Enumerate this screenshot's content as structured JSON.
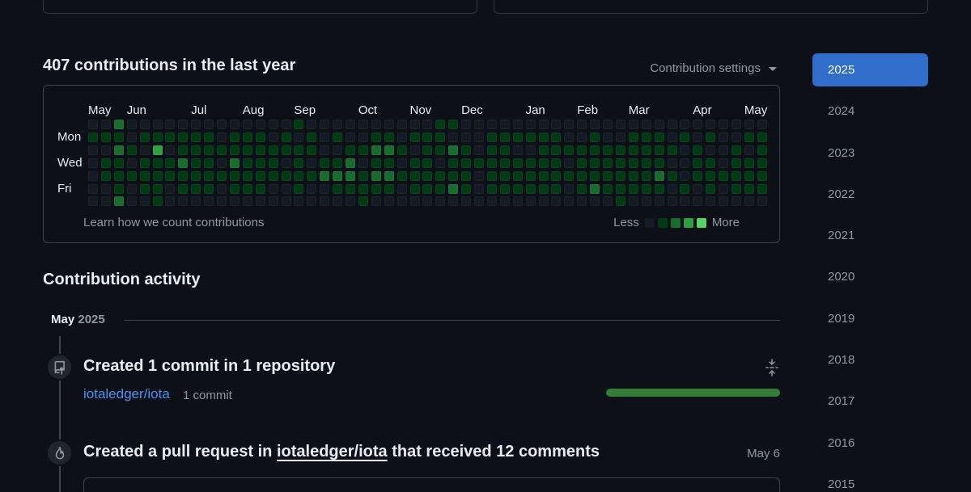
{
  "header": {
    "contributions_title": "407 contributions in the last year",
    "settings_label": "Contribution settings"
  },
  "calendar": {
    "months": [
      "May",
      "Jun",
      "Jul",
      "Aug",
      "Sep",
      "Oct",
      "Nov",
      "Dec",
      "Jan",
      "Feb",
      "Mar",
      "Apr",
      "May"
    ],
    "month_weeks": [
      0,
      3,
      8,
      12,
      16,
      21,
      25,
      29,
      34,
      38,
      42,
      47,
      51
    ],
    "days": [
      "Mon",
      "Wed",
      "Fri"
    ],
    "learn_link": "Learn how we count contributions",
    "legend_less": "Less",
    "legend_more": "More",
    "colors": [
      "#161b22",
      "#0e4429",
      "#006d32",
      "#26a641",
      "#39d353"
    ],
    "display_colors": [
      "#151b23",
      "#033a16",
      "#196c2e",
      "#2ea043",
      "#56d364"
    ],
    "weeks": 53,
    "levels": [
      [
        0,
        1,
        0,
        0,
        0,
        0,
        0
      ],
      [
        0,
        1,
        0,
        1,
        1,
        0,
        0
      ],
      [
        2,
        1,
        2,
        1,
        1,
        1,
        2
      ],
      [
        0,
        0,
        1,
        0,
        1,
        0,
        0
      ],
      [
        0,
        1,
        0,
        1,
        1,
        1,
        0
      ],
      [
        0,
        1,
        3,
        1,
        1,
        1,
        1
      ],
      [
        0,
        1,
        0,
        1,
        1,
        0,
        0
      ],
      [
        0,
        1,
        1,
        2,
        1,
        1,
        0
      ],
      [
        0,
        1,
        1,
        1,
        1,
        1,
        0
      ],
      [
        0,
        1,
        1,
        1,
        1,
        1,
        0
      ],
      [
        0,
        0,
        1,
        0,
        1,
        0,
        0
      ],
      [
        0,
        1,
        1,
        2,
        1,
        1,
        0
      ],
      [
        0,
        1,
        1,
        1,
        1,
        1,
        0
      ],
      [
        0,
        1,
        1,
        1,
        1,
        1,
        0
      ],
      [
        0,
        0,
        1,
        1,
        1,
        0,
        0
      ],
      [
        0,
        1,
        1,
        0,
        1,
        0,
        0
      ],
      [
        1,
        0,
        1,
        1,
        1,
        1,
        0
      ],
      [
        0,
        1,
        1,
        0,
        1,
        0,
        0
      ],
      [
        0,
        0,
        0,
        1,
        2,
        0,
        0
      ],
      [
        0,
        1,
        0,
        1,
        2,
        1,
        0
      ],
      [
        0,
        0,
        1,
        2,
        2,
        1,
        0
      ],
      [
        0,
        0,
        1,
        0,
        1,
        1,
        1
      ],
      [
        0,
        1,
        2,
        1,
        2,
        1,
        0
      ],
      [
        0,
        1,
        2,
        1,
        2,
        1,
        0
      ],
      [
        0,
        0,
        1,
        0,
        1,
        0,
        0
      ],
      [
        0,
        1,
        0,
        1,
        1,
        1,
        0
      ],
      [
        0,
        1,
        1,
        1,
        1,
        1,
        0
      ],
      [
        1,
        1,
        1,
        0,
        1,
        1,
        0
      ],
      [
        1,
        0,
        2,
        1,
        1,
        2,
        0
      ],
      [
        0,
        0,
        1,
        1,
        1,
        1,
        0
      ],
      [
        0,
        0,
        0,
        1,
        0,
        0,
        0
      ],
      [
        0,
        1,
        1,
        1,
        1,
        1,
        0
      ],
      [
        0,
        1,
        1,
        1,
        1,
        1,
        0
      ],
      [
        0,
        1,
        0,
        1,
        1,
        1,
        0
      ],
      [
        0,
        1,
        0,
        1,
        1,
        1,
        0
      ],
      [
        0,
        1,
        1,
        1,
        1,
        1,
        0
      ],
      [
        0,
        1,
        1,
        1,
        1,
        1,
        0
      ],
      [
        0,
        0,
        1,
        0,
        1,
        0,
        0
      ],
      [
        0,
        0,
        1,
        1,
        1,
        1,
        0
      ],
      [
        0,
        1,
        1,
        1,
        1,
        2,
        0
      ],
      [
        0,
        0,
        1,
        1,
        1,
        1,
        0
      ],
      [
        0,
        0,
        1,
        1,
        1,
        1,
        1
      ],
      [
        0,
        1,
        1,
        1,
        1,
        1,
        0
      ],
      [
        0,
        1,
        1,
        1,
        1,
        1,
        0
      ],
      [
        0,
        1,
        1,
        1,
        2,
        1,
        0
      ],
      [
        0,
        0,
        1,
        0,
        1,
        0,
        0
      ],
      [
        0,
        1,
        0,
        0,
        0,
        1,
        0
      ],
      [
        0,
        0,
        1,
        1,
        1,
        0,
        0
      ],
      [
        0,
        1,
        0,
        1,
        1,
        1,
        0
      ],
      [
        0,
        0,
        0,
        0,
        1,
        0,
        0
      ],
      [
        0,
        0,
        1,
        1,
        1,
        1,
        0
      ],
      [
        0,
        1,
        0,
        1,
        1,
        1,
        0
      ],
      [
        0,
        1,
        1,
        1,
        1,
        1,
        0
      ]
    ]
  },
  "activity": {
    "title": "Contribution activity",
    "period_month": "May",
    "period_year": "2025",
    "event1": {
      "title": "Created 1 commit in 1 repository",
      "repo": "iotaledger/iota",
      "count": "1 commit",
      "progress": 1.0
    },
    "event2": {
      "title_pre": "Created a pull request in ",
      "title_repo": "iotaledger/iota",
      "title_post": " that received 12 comments",
      "date": "May 6"
    }
  },
  "years": [
    "2025",
    "2024",
    "2023",
    "2022",
    "2021",
    "2020",
    "2019",
    "2018",
    "2017",
    "2016",
    "2015"
  ],
  "active_year": "2025"
}
